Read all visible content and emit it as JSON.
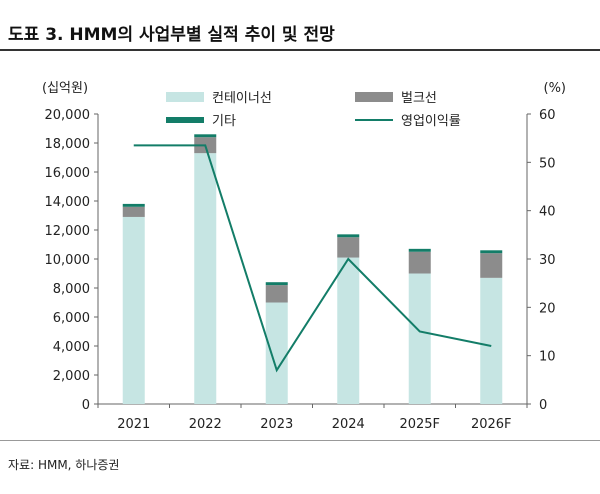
{
  "title": "도표 3.  HMM의 사업부별 실적 추이 및 전망",
  "source": "자료: HMM, 하나증권",
  "colors": {
    "container": "#c6e5e3",
    "bulk": "#8c8c8c",
    "other": "#137d68",
    "margin_line": "#137d68"
  },
  "chart_data": {
    "type": "bar",
    "stacked": true,
    "categories": [
      "2021",
      "2022",
      "2023",
      "2024",
      "2025F",
      "2026F"
    ],
    "series": [
      {
        "name": "컨테이너선",
        "type": "bar",
        "axis": "left",
        "values": [
          12900,
          17300,
          7000,
          10100,
          9000,
          8700
        ]
      },
      {
        "name": "벌크선",
        "type": "bar",
        "axis": "left",
        "values": [
          700,
          1100,
          1200,
          1400,
          1500,
          1700
        ]
      },
      {
        "name": "기타",
        "type": "bar",
        "axis": "left",
        "values": [
          200,
          200,
          200,
          200,
          200,
          200
        ]
      },
      {
        "name": "영업이익률",
        "type": "line",
        "axis": "right",
        "values": [
          53.5,
          53.5,
          7,
          30,
          15,
          12
        ]
      }
    ],
    "left_axis": {
      "unit": "(십억원)",
      "ylim": [
        0,
        20000
      ],
      "ticks": [
        "0",
        "2,000",
        "4,000",
        "6,000",
        "8,000",
        "10,000",
        "12,000",
        "14,000",
        "16,000",
        "18,000",
        "20,000"
      ]
    },
    "right_axis": {
      "unit": "(%)",
      "ylim": [
        0,
        60
      ],
      "ticks": [
        "0",
        "10",
        "20",
        "30",
        "40",
        "50",
        "60"
      ]
    },
    "legend_placement": "top",
    "grid": false
  }
}
